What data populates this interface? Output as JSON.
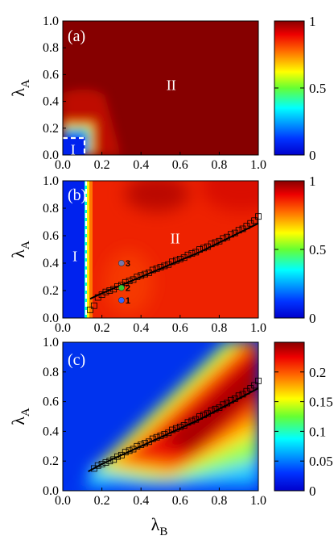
{
  "chart_data": [
    {
      "type": "heatmap",
      "panel_label": "(a)",
      "ylabel": "λ",
      "ylabel_sub": "A",
      "xlim": [
        0,
        1
      ],
      "ylim": [
        0,
        1
      ],
      "xticks": [
        "0.0",
        "0.2",
        "0.4",
        "0.6",
        "0.8",
        "1.0"
      ],
      "yticks": [
        "0.0",
        "0.2",
        "0.4",
        "0.6",
        "0.8",
        "1.0"
      ],
      "colorbar": {
        "min": 0,
        "max": 1,
        "ticks": [
          {
            "value": 0,
            "label": "0"
          },
          {
            "value": 0.5,
            "label": "0.5"
          },
          {
            "value": 1,
            "label": "1"
          }
        ]
      },
      "regions": [
        {
          "label": "I",
          "x": 0.04,
          "y": 0.04
        },
        {
          "label": "II",
          "x": 0.53,
          "y": 0.52
        }
      ],
      "dashed_boundary": [
        [
          0.0,
          0.13
        ],
        [
          0.11,
          0.13
        ],
        [
          0.11,
          0.0
        ]
      ]
    },
    {
      "type": "heatmap",
      "panel_label": "(b)",
      "ylabel": "λ",
      "ylabel_sub": "A",
      "xlim": [
        0,
        1
      ],
      "ylim": [
        0,
        1
      ],
      "xticks": [
        "0.0",
        "0.2",
        "0.4",
        "0.6",
        "0.8",
        "1.0"
      ],
      "yticks": [
        "0.0",
        "0.2",
        "0.4",
        "0.6",
        "0.8",
        "1.0"
      ],
      "colorbar": {
        "min": 0,
        "max": 1,
        "ticks": [
          {
            "value": 0,
            "label": "0"
          },
          {
            "value": 0.5,
            "label": "0.5"
          },
          {
            "value": 1,
            "label": "1"
          }
        ]
      },
      "regions": [
        {
          "label": "I",
          "x": 0.05,
          "y": 0.45
        },
        {
          "label": "II",
          "x": 0.55,
          "y": 0.58
        }
      ],
      "dashed_boundary": [
        [
          0.12,
          0.0
        ],
        [
          0.12,
          1.0
        ]
      ],
      "line": {
        "x": [
          0.14,
          0.2,
          0.3,
          0.4,
          0.5,
          0.6,
          0.7,
          0.8,
          0.9,
          1.0
        ],
        "y": [
          0.14,
          0.18,
          0.24,
          0.3,
          0.36,
          0.42,
          0.48,
          0.55,
          0.62,
          0.69
        ]
      },
      "squares": {
        "x": [
          0.14,
          0.16,
          0.18,
          0.2,
          0.22,
          0.24,
          0.26,
          0.28,
          0.3,
          0.32,
          0.34,
          0.36,
          0.38,
          0.4,
          0.42,
          0.44,
          0.46,
          0.48,
          0.5,
          0.52,
          0.54,
          0.56,
          0.58,
          0.6,
          0.62,
          0.64,
          0.66,
          0.68,
          0.7,
          0.72,
          0.74,
          0.76,
          0.78,
          0.8,
          0.82,
          0.84,
          0.86,
          0.88,
          0.9,
          0.92,
          0.94,
          0.96,
          0.98,
          1.0
        ],
        "y": [
          0.06,
          0.09,
          0.15,
          0.17,
          0.19,
          0.2,
          0.21,
          0.23,
          0.24,
          0.26,
          0.27,
          0.28,
          0.3,
          0.31,
          0.32,
          0.33,
          0.35,
          0.36,
          0.37,
          0.38,
          0.39,
          0.41,
          0.42,
          0.43,
          0.44,
          0.46,
          0.47,
          0.48,
          0.5,
          0.51,
          0.52,
          0.54,
          0.55,
          0.56,
          0.58,
          0.59,
          0.61,
          0.62,
          0.64,
          0.65,
          0.67,
          0.69,
          0.71,
          0.74
        ]
      },
      "points": [
        {
          "label": "1",
          "x": 0.3,
          "y": 0.13,
          "color": "#3366ff"
        },
        {
          "label": "2",
          "x": 0.3,
          "y": 0.22,
          "color": "#33cc33"
        },
        {
          "label": "3",
          "x": 0.3,
          "y": 0.4,
          "color": "#7777aa"
        }
      ]
    },
    {
      "type": "heatmap",
      "panel_label": "(c)",
      "ylabel": "λ",
      "ylabel_sub": "A",
      "xlabel": "λ",
      "xlabel_sub": "B",
      "xlim": [
        0,
        1
      ],
      "ylim": [
        0,
        1
      ],
      "xticks": [
        "0.0",
        "0.2",
        "0.4",
        "0.6",
        "0.8",
        "1.0"
      ],
      "yticks": [
        "0.0",
        "0.2",
        "0.4",
        "0.6",
        "0.8",
        "1.0"
      ],
      "colorbar": {
        "min": 0,
        "max": 0.25,
        "ticks": [
          {
            "value": 0,
            "label": "0"
          },
          {
            "value": 0.05,
            "label": "0.05"
          },
          {
            "value": 0.1,
            "label": "0.1"
          },
          {
            "value": 0.15,
            "label": "0.15"
          },
          {
            "value": 0.2,
            "label": "0.2"
          }
        ]
      },
      "line": {
        "x": [
          0.13,
          0.2,
          0.3,
          0.4,
          0.5,
          0.6,
          0.7,
          0.8,
          0.9,
          1.0
        ],
        "y": [
          0.13,
          0.18,
          0.24,
          0.3,
          0.36,
          0.42,
          0.48,
          0.55,
          0.62,
          0.69
        ]
      },
      "squares": {
        "x": [
          0.16,
          0.18,
          0.2,
          0.22,
          0.24,
          0.26,
          0.28,
          0.3,
          0.32,
          0.34,
          0.36,
          0.38,
          0.4,
          0.42,
          0.44,
          0.46,
          0.48,
          0.5,
          0.52,
          0.54,
          0.56,
          0.58,
          0.6,
          0.62,
          0.64,
          0.66,
          0.68,
          0.7,
          0.72,
          0.74,
          0.76,
          0.78,
          0.8,
          0.82,
          0.84,
          0.86,
          0.88,
          0.9,
          0.92,
          0.94,
          0.96,
          0.98,
          1.0
        ],
        "y": [
          0.15,
          0.17,
          0.18,
          0.19,
          0.2,
          0.21,
          0.23,
          0.24,
          0.26,
          0.27,
          0.28,
          0.3,
          0.31,
          0.32,
          0.33,
          0.35,
          0.36,
          0.37,
          0.38,
          0.39,
          0.41,
          0.42,
          0.43,
          0.44,
          0.46,
          0.47,
          0.48,
          0.5,
          0.51,
          0.52,
          0.54,
          0.55,
          0.56,
          0.58,
          0.59,
          0.61,
          0.62,
          0.64,
          0.65,
          0.67,
          0.69,
          0.71,
          0.74
        ]
      }
    }
  ]
}
